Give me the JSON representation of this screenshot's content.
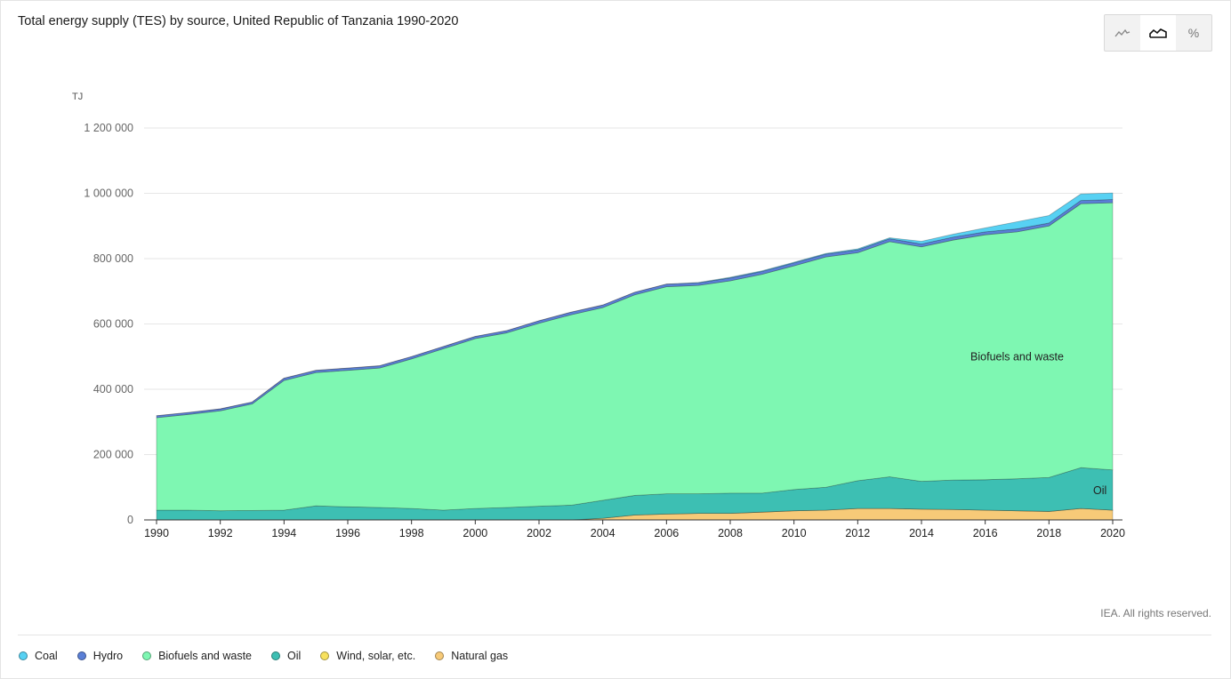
{
  "title": "Total energy supply (TES) by source, United Republic of Tanzania 1990-2020",
  "unit": "TJ",
  "credit": "IEA. All rights reserved.",
  "view_toggle": [
    {
      "icon": "line-chart-icon",
      "label": "⌁"
    },
    {
      "icon": "area-chart-icon",
      "label": "⛰"
    },
    {
      "icon": "percent-icon",
      "label": "%"
    }
  ],
  "colors": {
    "coal": "#57d1f3",
    "hydro": "#5a7fd6",
    "biofuels": "#7ef7b2",
    "oil": "#3dbfb3",
    "wind": "#f7e15e",
    "gas": "#f7ca78",
    "grid": "#e6e6e6"
  },
  "legend": [
    {
      "label": "Coal",
      "color": "#57d1f3"
    },
    {
      "label": "Hydro",
      "color": "#5a7fd6"
    },
    {
      "label": "Biofuels and waste",
      "color": "#7ef7b2"
    },
    {
      "label": "Oil",
      "color": "#3dbfb3"
    },
    {
      "label": "Wind, solar, etc.",
      "color": "#f7e15e"
    },
    {
      "label": "Natural gas",
      "color": "#f7ca78"
    }
  ],
  "chart_data": {
    "type": "area",
    "stacked": true,
    "x": [
      1990,
      1991,
      1992,
      1993,
      1994,
      1995,
      1996,
      1997,
      1998,
      1999,
      2000,
      2001,
      2002,
      2003,
      2004,
      2005,
      2006,
      2007,
      2008,
      2009,
      2010,
      2011,
      2012,
      2013,
      2014,
      2015,
      2016,
      2017,
      2018,
      2019,
      2020
    ],
    "ylim": [
      0,
      1200000
    ],
    "yticks": [
      0,
      200000,
      400000,
      600000,
      800000,
      1000000,
      1200000
    ],
    "ytick_labels": [
      "0",
      "200 000",
      "400 000",
      "600 000",
      "800 000",
      "1 000 000",
      "1 200 000"
    ],
    "xticks": [
      1990,
      1992,
      1994,
      1996,
      1998,
      2000,
      2002,
      2004,
      2006,
      2008,
      2010,
      2012,
      2014,
      2016,
      2018,
      2020
    ],
    "series": [
      {
        "name": "Natural gas",
        "key": "gas",
        "values": [
          0,
          0,
          0,
          0,
          0,
          0,
          0,
          0,
          0,
          0,
          0,
          0,
          0,
          0,
          5000,
          15000,
          18000,
          20000,
          20000,
          24000,
          28000,
          30000,
          35000,
          35000,
          33000,
          32000,
          30000,
          28000,
          26000,
          35000,
          30000
        ]
      },
      {
        "name": "Wind, solar, etc.",
        "key": "wind",
        "values": [
          0,
          0,
          0,
          0,
          0,
          0,
          0,
          0,
          0,
          0,
          0,
          0,
          0,
          0,
          0,
          0,
          0,
          0,
          0,
          0,
          0,
          0,
          0,
          0,
          0,
          0,
          0,
          0,
          0,
          0,
          0
        ]
      },
      {
        "name": "Oil",
        "key": "oil",
        "values": [
          30000,
          30000,
          28000,
          29000,
          30000,
          43000,
          40000,
          38000,
          35000,
          30000,
          35000,
          38000,
          42000,
          45000,
          55000,
          60000,
          62000,
          60000,
          62000,
          58000,
          65000,
          70000,
          85000,
          97000,
          85000,
          90000,
          93000,
          98000,
          104000,
          125000,
          123000
        ]
      },
      {
        "name": "Biofuels and waste",
        "key": "biofuels",
        "values": [
          283000,
          293000,
          306000,
          326000,
          397000,
          408000,
          418000,
          427000,
          458000,
          494000,
          520000,
          535000,
          560000,
          583000,
          590000,
          614000,
          634000,
          638000,
          650000,
          670000,
          685000,
          705000,
          698000,
          720000,
          718000,
          735000,
          750000,
          756000,
          770000,
          808000,
          818000
        ]
      },
      {
        "name": "Hydro",
        "key": "hydro",
        "values": [
          6000,
          6000,
          6000,
          6000,
          7000,
          7000,
          7000,
          7000,
          7000,
          7000,
          7000,
          7000,
          8000,
          8000,
          8000,
          8000,
          8000,
          8000,
          9000,
          9000,
          9000,
          9000,
          9000,
          9000,
          9000,
          9000,
          9000,
          9000,
          9000,
          10000,
          10000
        ]
      },
      {
        "name": "Coal",
        "key": "coal",
        "values": [
          0,
          0,
          0,
          0,
          0,
          0,
          0,
          0,
          0,
          0,
          0,
          0,
          0,
          0,
          0,
          0,
          0,
          1000,
          2000,
          2000,
          2000,
          2000,
          3000,
          3000,
          8000,
          9000,
          12000,
          22000,
          23000,
          20000,
          20000
        ]
      }
    ],
    "annotations": [
      {
        "text": "Biofuels and waste",
        "x": 2017,
        "y": 500000
      },
      {
        "text": "Oil",
        "x": 2019.6,
        "y": 90000
      }
    ],
    "grid": true,
    "legend_position": "bottom-left"
  }
}
